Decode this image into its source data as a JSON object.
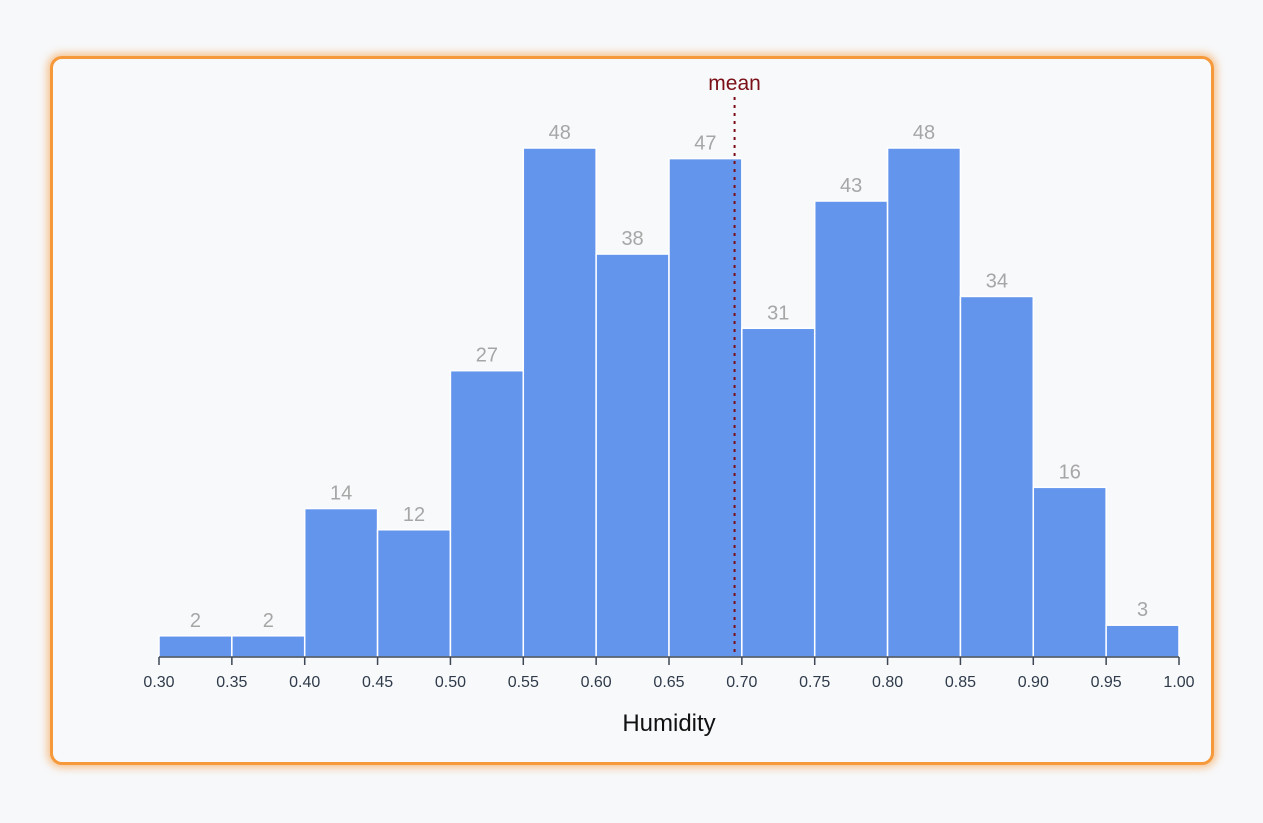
{
  "chart_data": {
    "type": "bar",
    "title": "",
    "xlabel": "Humidity",
    "ylabel": "",
    "bins": [
      {
        "start": 0.3,
        "end": 0.35,
        "count": 2
      },
      {
        "start": 0.35,
        "end": 0.4,
        "count": 2
      },
      {
        "start": 0.4,
        "end": 0.45,
        "count": 14
      },
      {
        "start": 0.45,
        "end": 0.5,
        "count": 12
      },
      {
        "start": 0.5,
        "end": 0.55,
        "count": 27
      },
      {
        "start": 0.55,
        "end": 0.6,
        "count": 48
      },
      {
        "start": 0.6,
        "end": 0.65,
        "count": 38
      },
      {
        "start": 0.65,
        "end": 0.7,
        "count": 47
      },
      {
        "start": 0.7,
        "end": 0.75,
        "count": 31
      },
      {
        "start": 0.75,
        "end": 0.8,
        "count": 43
      },
      {
        "start": 0.8,
        "end": 0.85,
        "count": 48
      },
      {
        "start": 0.85,
        "end": 0.9,
        "count": 34
      },
      {
        "start": 0.9,
        "end": 0.95,
        "count": 16
      },
      {
        "start": 0.95,
        "end": 1.0,
        "count": 3
      }
    ],
    "xticks": [
      "0.30",
      "0.35",
      "0.40",
      "0.45",
      "0.50",
      "0.55",
      "0.60",
      "0.65",
      "0.70",
      "0.75",
      "0.80",
      "0.85",
      "0.90",
      "0.95",
      "1.00"
    ],
    "xlim": [
      0.3,
      1.0
    ],
    "ylim": [
      0,
      48
    ],
    "mean": {
      "value": 0.695,
      "label": "mean"
    },
    "grid": false,
    "colors": {
      "bar": "#6495ed",
      "mean": "#7a0f18",
      "border": "#f5993a"
    }
  }
}
